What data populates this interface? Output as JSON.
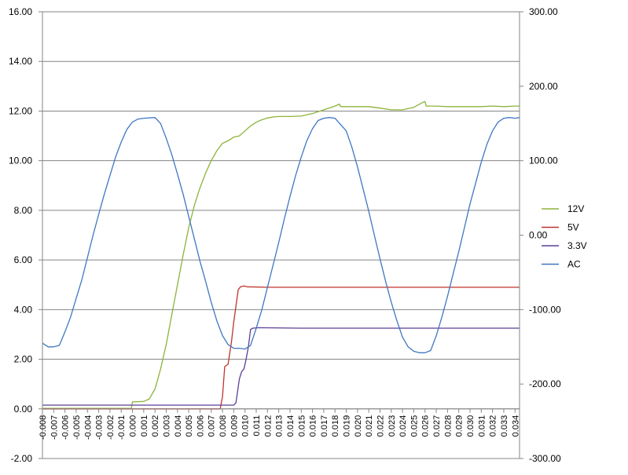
{
  "chart_data": {
    "type": "line",
    "grid": true,
    "legend_placement": "right",
    "x_ticks": [
      "-0.008",
      "-0.007",
      "-0.006",
      "-0.005",
      "-0.004",
      "-0.003",
      "-0.002",
      "-0.001",
      "0.000",
      "0.001",
      "0.002",
      "0.003",
      "0.004",
      "0.005",
      "0.006",
      "0.007",
      "0.008",
      "0.009",
      "0.010",
      "0.011",
      "0.012",
      "0.013",
      "0.014",
      "0.015",
      "0.016",
      "0.017",
      "0.018",
      "0.019",
      "0.020",
      "0.021",
      "0.022",
      "0.023",
      "0.024",
      "0.025",
      "0.026",
      "0.027",
      "0.028",
      "0.029",
      "0.030",
      "0.031",
      "0.032",
      "0.033",
      "0.034"
    ],
    "xlim": [
      -0.008,
      0.0344
    ],
    "y_left": {
      "ticks": [
        "-2.00",
        "0.00",
        "2.00",
        "4.00",
        "6.00",
        "8.00",
        "10.00",
        "12.00",
        "14.00",
        "16.00"
      ],
      "lim": [
        -2,
        16
      ]
    },
    "y_right": {
      "ticks": [
        "-300.00",
        "-200.00",
        "-100.00",
        "0.00",
        "100.00",
        "200.00",
        "300.00"
      ],
      "lim": [
        -300,
        300
      ]
    },
    "series": [
      {
        "name": "12V",
        "color": "#8DB33A",
        "axis": "left",
        "x": [
          -0.008,
          -0.0001,
          0.0,
          0.001,
          0.0015,
          0.002,
          0.0025,
          0.003,
          0.0035,
          0.004,
          0.0045,
          0.005,
          0.0055,
          0.006,
          0.0065,
          0.007,
          0.0075,
          0.008,
          0.0085,
          0.009,
          0.0095,
          0.01,
          0.0105,
          0.011,
          0.0115,
          0.012,
          0.0125,
          0.013,
          0.014,
          0.015,
          0.016,
          0.017,
          0.018,
          0.0184,
          0.0185,
          0.019,
          0.021,
          0.022,
          0.023,
          0.024,
          0.025,
          0.0258,
          0.026,
          0.0261,
          0.027,
          0.028,
          0.029,
          0.03,
          0.031,
          0.032,
          0.033,
          0.034,
          0.0344
        ],
        "values": [
          0.02,
          0.02,
          0.28,
          0.3,
          0.4,
          0.8,
          1.6,
          2.6,
          3.8,
          5.0,
          6.2,
          7.3,
          8.2,
          8.9,
          9.5,
          10.0,
          10.4,
          10.7,
          10.8,
          10.95,
          11.0,
          11.2,
          11.4,
          11.55,
          11.65,
          11.72,
          11.76,
          11.78,
          11.78,
          11.8,
          11.9,
          12.05,
          12.2,
          12.28,
          12.18,
          12.18,
          12.18,
          12.12,
          12.05,
          12.05,
          12.15,
          12.35,
          12.38,
          12.2,
          12.2,
          12.18,
          12.18,
          12.18,
          12.18,
          12.2,
          12.18,
          12.2,
          12.2
        ]
      },
      {
        "name": "5V",
        "color": "#C0332B",
        "axis": "left",
        "x": [
          -0.008,
          0.0078,
          0.008,
          0.0082,
          0.0085,
          0.0088,
          0.009,
          0.0094,
          0.0096,
          0.0099,
          0.0102,
          0.012,
          0.015,
          0.02,
          0.025,
          0.03,
          0.0344
        ],
        "values": [
          0.0,
          0.0,
          0.5,
          1.7,
          1.8,
          2.7,
          3.5,
          4.8,
          4.92,
          4.95,
          4.92,
          4.9,
          4.9,
          4.9,
          4.9,
          4.9,
          4.9
        ]
      },
      {
        "name": "3.3V",
        "color": "#5B3F98",
        "axis": "left",
        "x": [
          -0.008,
          0.009,
          0.0092,
          0.0095,
          0.0097,
          0.0099,
          0.0101,
          0.0103,
          0.0105,
          0.0107,
          0.0112,
          0.015,
          0.02,
          0.025,
          0.03,
          0.0344
        ],
        "values": [
          0.15,
          0.15,
          0.25,
          1.2,
          1.5,
          1.6,
          2.0,
          2.5,
          3.2,
          3.25,
          3.27,
          3.25,
          3.25,
          3.25,
          3.25,
          3.25
        ]
      },
      {
        "name": "AC",
        "color": "#3F77C2",
        "axis": "right",
        "x": [
          -0.008,
          -0.0078,
          -0.0075,
          -0.007,
          -0.0065,
          -0.006,
          -0.0055,
          -0.005,
          -0.0045,
          -0.004,
          -0.0035,
          -0.003,
          -0.0025,
          -0.002,
          -0.0015,
          -0.001,
          -0.0005,
          0.0,
          0.0005,
          0.001,
          0.002,
          0.0025,
          0.003,
          0.0035,
          0.004,
          0.0045,
          0.005,
          0.0055,
          0.006,
          0.0065,
          0.007,
          0.0075,
          0.008,
          0.0085,
          0.009,
          0.0095,
          0.01,
          0.0105,
          0.011,
          0.0115,
          0.012,
          0.0125,
          0.013,
          0.0135,
          0.014,
          0.0145,
          0.015,
          0.0155,
          0.016,
          0.0165,
          0.017,
          0.0175,
          0.018,
          0.019,
          0.0195,
          0.02,
          0.0205,
          0.021,
          0.0215,
          0.022,
          0.0225,
          0.023,
          0.0235,
          0.024,
          0.0245,
          0.025,
          0.0255,
          0.026,
          0.0265,
          0.027,
          0.0275,
          0.028,
          0.0285,
          0.029,
          0.0295,
          0.03,
          0.0305,
          0.031,
          0.0315,
          0.032,
          0.0325,
          0.033,
          0.0335,
          0.034,
          0.0344
        ],
        "values": [
          -145,
          -147,
          -150,
          -150,
          -148,
          -130,
          -110,
          -85,
          -60,
          -30,
          0,
          28,
          55,
          80,
          105,
          125,
          142,
          152,
          156,
          157,
          158,
          150,
          130,
          108,
          82,
          55,
          25,
          -5,
          -35,
          -62,
          -90,
          -115,
          -135,
          -147,
          -152,
          -152,
          -153,
          -148,
          -125,
          -100,
          -70,
          -40,
          -10,
          22,
          52,
          80,
          105,
          127,
          143,
          154,
          157,
          158,
          157,
          140,
          118,
          92,
          62,
          32,
          0,
          -32,
          -62,
          -90,
          -115,
          -137,
          -150,
          -156,
          -158,
          -158,
          -155,
          -135,
          -110,
          -82,
          -52,
          -22,
          10,
          42,
          70,
          98,
          122,
          140,
          152,
          157,
          158,
          157,
          158
        ]
      }
    ]
  }
}
